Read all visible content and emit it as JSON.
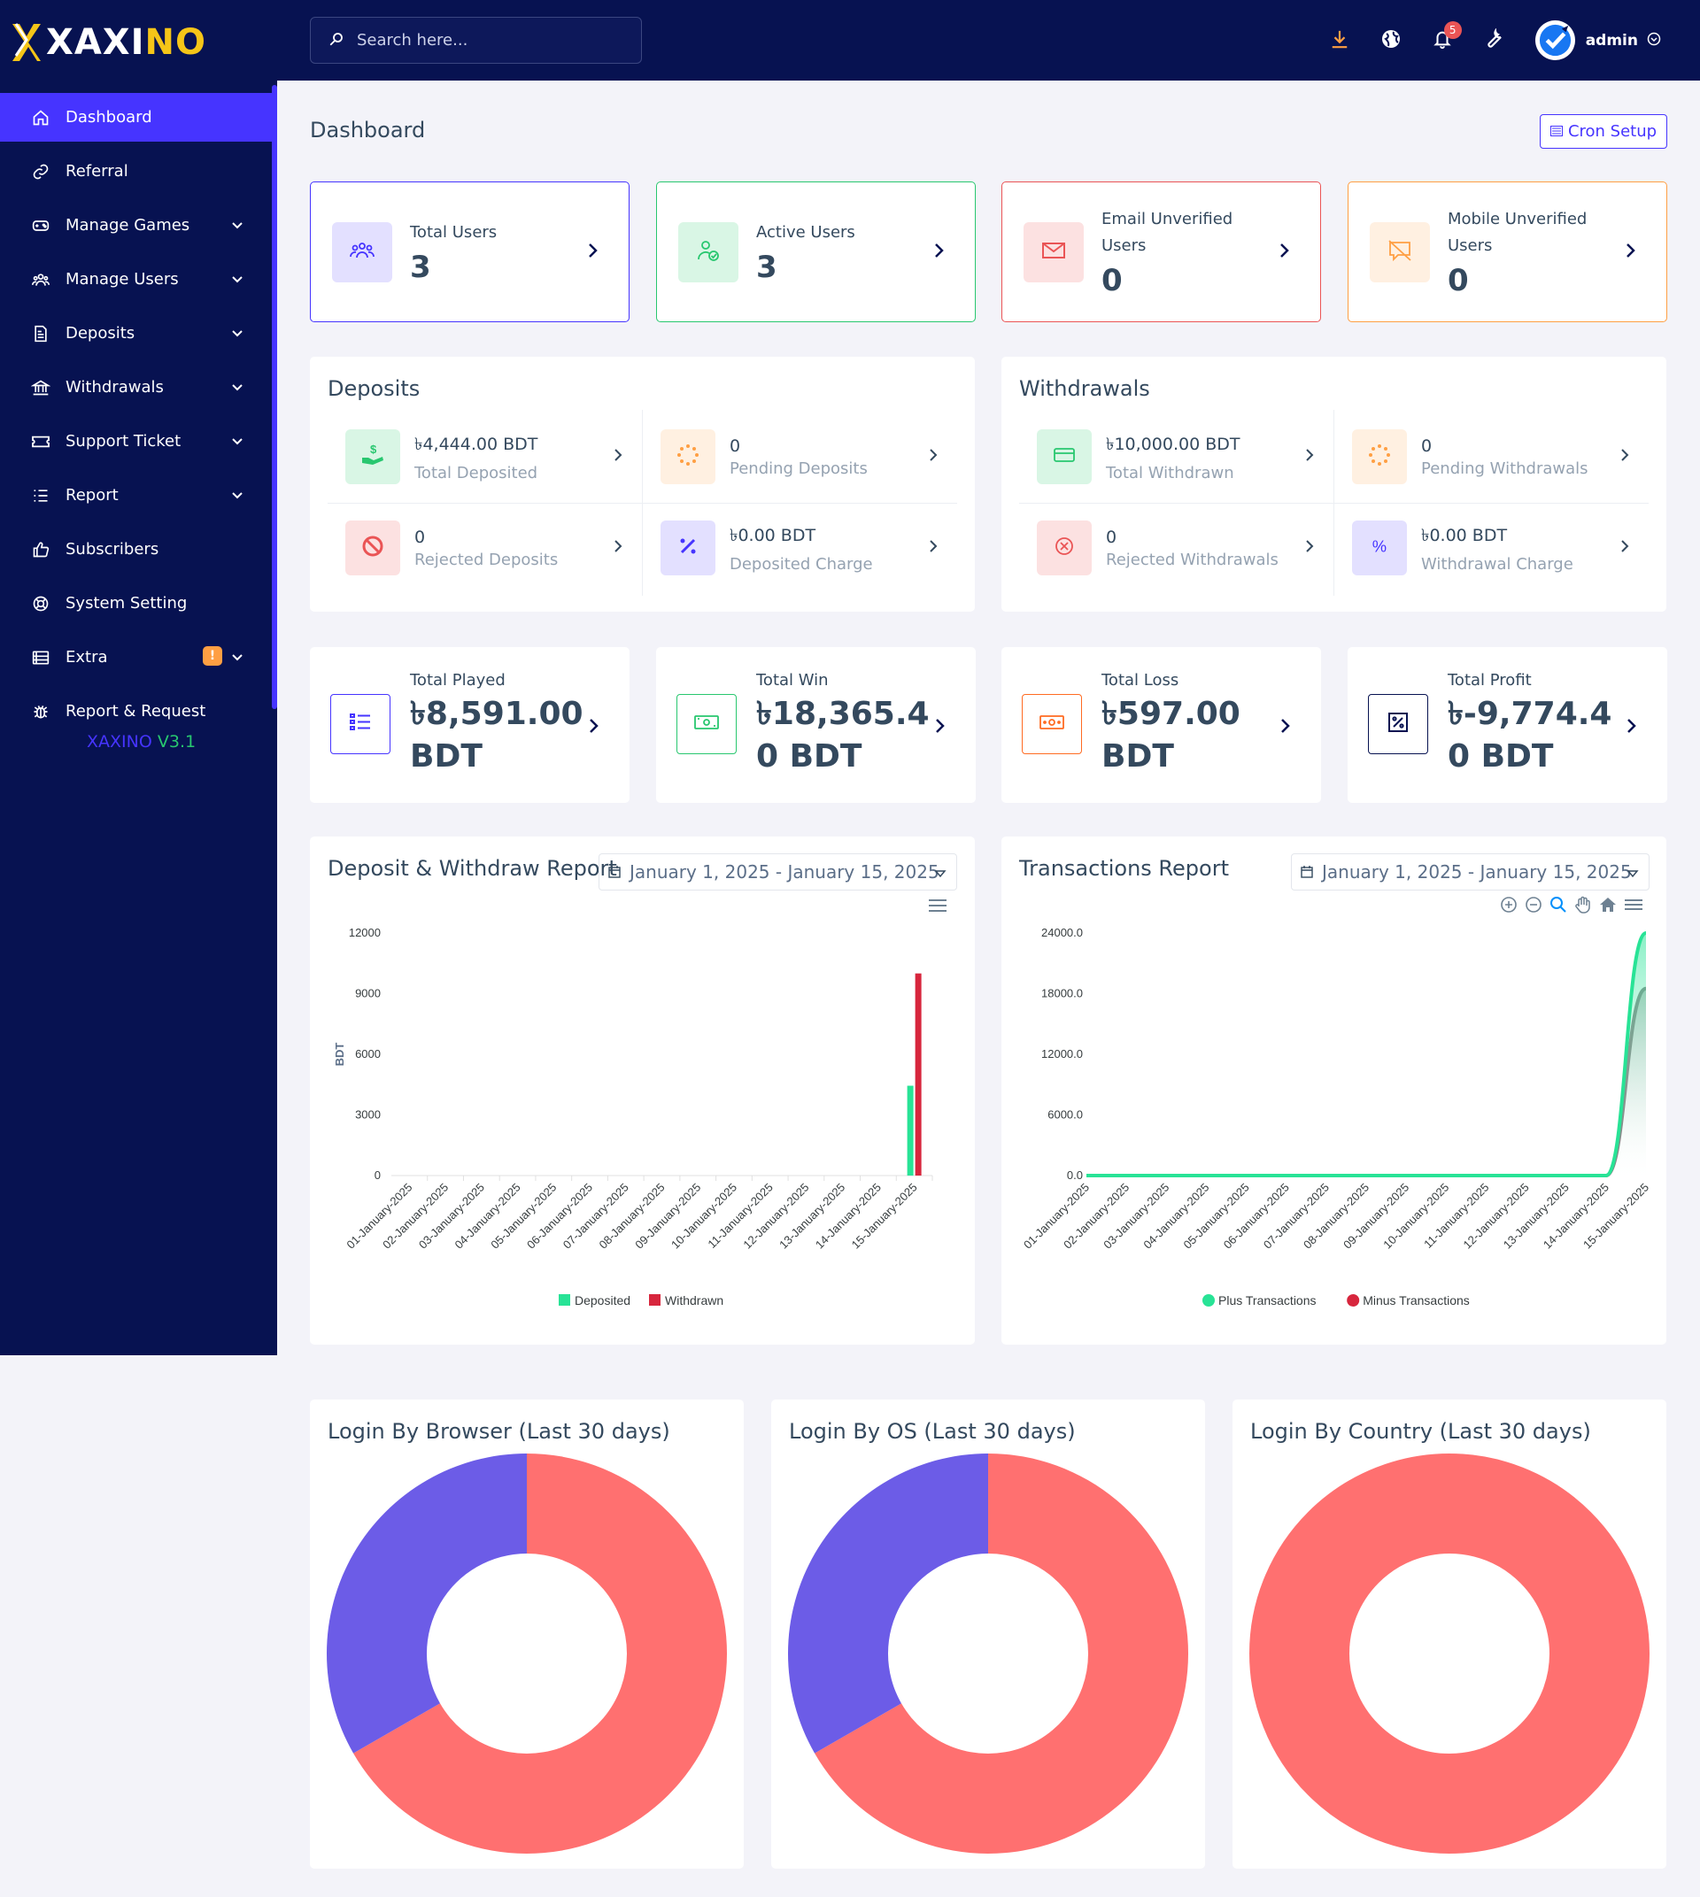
{
  "brand": {
    "logo_text_main": "XAXI",
    "logo_text_accent": "NO",
    "version_name": "XAXINO",
    "version_number": "V3.1"
  },
  "search": {
    "placeholder": "Search here..."
  },
  "topbar": {
    "notification_count": "5",
    "user_name": "admin"
  },
  "sidebar": {
    "items": [
      {
        "label": "Dashboard",
        "icon": "home-icon",
        "active": true,
        "has_submenu": false
      },
      {
        "label": "Referral",
        "icon": "link-icon",
        "has_submenu": false
      },
      {
        "label": "Manage Games",
        "icon": "gamepad-icon",
        "has_submenu": true
      },
      {
        "label": "Manage Users",
        "icon": "users-icon",
        "has_submenu": true
      },
      {
        "label": "Deposits",
        "icon": "file-invoice-icon",
        "has_submenu": true
      },
      {
        "label": "Withdrawals",
        "icon": "bank-icon",
        "has_submenu": true
      },
      {
        "label": "Support Ticket",
        "icon": "ticket-icon",
        "has_submenu": true
      },
      {
        "label": "Report",
        "icon": "list-icon",
        "has_submenu": true
      },
      {
        "label": "Subscribers",
        "icon": "thumbs-up-icon",
        "has_submenu": false
      },
      {
        "label": "System Setting",
        "icon": "life-ring-icon",
        "has_submenu": false
      },
      {
        "label": "Extra",
        "icon": "server-icon",
        "has_submenu": true,
        "warning_badge": "!"
      },
      {
        "label": "Report & Request",
        "icon": "bug-icon",
        "has_submenu": false
      }
    ]
  },
  "page": {
    "title": "Dashboard",
    "cron_button": "Cron Setup"
  },
  "stats": [
    {
      "label": "Total Users",
      "value": "3",
      "color": "#4634ff"
    },
    {
      "label": "Active Users",
      "value": "3",
      "color": "#28c76f"
    },
    {
      "label": "Email Unverified Users",
      "value": "0",
      "color": "#ea5455"
    },
    {
      "label": "Mobile Unverified Users",
      "value": "0",
      "color": "#ff9f43"
    }
  ],
  "deposits": {
    "title": "Deposits",
    "widgets": [
      {
        "value": "৳4,444.00 BDT",
        "label": "Total Deposited"
      },
      {
        "value": "0",
        "label": "Pending Deposits"
      },
      {
        "value": "0",
        "label": "Rejected Deposits"
      },
      {
        "value": "৳0.00 BDT",
        "label": "Deposited Charge"
      }
    ]
  },
  "withdrawals": {
    "title": "Withdrawals",
    "widgets": [
      {
        "value": "৳10,000.00 BDT",
        "label": "Total Withdrawn"
      },
      {
        "value": "0",
        "label": "Pending Withdrawals"
      },
      {
        "value": "0",
        "label": "Rejected Withdrawals"
      },
      {
        "value": "৳0.00 BDT",
        "label": "Withdrawal Charge"
      }
    ]
  },
  "games": [
    {
      "label": "Total Played",
      "value": "৳8,591.00 BDT",
      "color": "#4634ff"
    },
    {
      "label": "Total Win",
      "value": "৳18,365.4 0 BDT",
      "color": "#28c76f"
    },
    {
      "label": "Total Loss",
      "value": "৳597.00 BDT",
      "color": "#ff6b22"
    },
    {
      "label": "Total Profit",
      "value": "৳-9,774.4 0 BDT",
      "color": "#071251"
    }
  ],
  "charts": {
    "deposit_report": {
      "title": "Deposit & Withdraw Report",
      "date_range": "January 1, 2025 - January 15, 2025"
    },
    "transactions_report": {
      "title": "Transactions Report",
      "date_range": "January 1, 2025 - January 15, 2025"
    },
    "login_browser": {
      "title": "Login By Browser (Last 30 days)"
    },
    "login_os": {
      "title": "Login By OS (Last 30 days)"
    },
    "login_country": {
      "title": "Login By Country (Last 30 days)"
    }
  },
  "chart_data": [
    {
      "type": "bar",
      "title": "Deposit & Withdraw Report",
      "ylabel": "BDT",
      "ylim": [
        0,
        12000
      ],
      "yticks": [
        0,
        3000,
        6000,
        9000,
        12000
      ],
      "categories": [
        "01-January-2025",
        "02-January-2025",
        "03-January-2025",
        "04-January-2025",
        "05-January-2025",
        "06-January-2025",
        "07-January-2025",
        "08-January-2025",
        "09-January-2025",
        "10-January-2025",
        "11-January-2025",
        "12-January-2025",
        "13-January-2025",
        "14-January-2025",
        "15-January-2025"
      ],
      "series": [
        {
          "name": "Deposited",
          "color": "#28e396",
          "values": [
            0,
            0,
            0,
            0,
            0,
            0,
            0,
            0,
            0,
            0,
            0,
            0,
            0,
            0,
            4444
          ]
        },
        {
          "name": "Withdrawn",
          "color": "#d7263d",
          "values": [
            0,
            0,
            0,
            0,
            0,
            0,
            0,
            0,
            0,
            0,
            0,
            0,
            0,
            0,
            10000
          ]
        }
      ],
      "legend": "bottom"
    },
    {
      "type": "area",
      "title": "Transactions Report",
      "ylim": [
        0,
        24000
      ],
      "yticks": [
        "0.0",
        "6000.0",
        "12000.0",
        "18000.0",
        "24000.0"
      ],
      "categories": [
        "01-January-2025",
        "02-January-2025",
        "03-January-2025",
        "04-January-2025",
        "05-January-2025",
        "06-January-2025",
        "07-January-2025",
        "08-January-2025",
        "09-January-2025",
        "10-January-2025",
        "11-January-2025",
        "12-January-2025",
        "13-January-2025",
        "14-January-2025",
        "15-January-2025"
      ],
      "series": [
        {
          "name": "Plus Transactions",
          "color": "#28e396",
          "values": [
            0,
            0,
            0,
            0,
            0,
            0,
            0,
            0,
            0,
            0,
            0,
            0,
            0,
            0,
            24000
          ]
        },
        {
          "name": "Minus Transactions",
          "color": "#d7263d",
          "values": [
            0,
            0,
            0,
            0,
            0,
            0,
            0,
            0,
            0,
            0,
            0,
            0,
            0,
            0,
            18500
          ]
        }
      ],
      "legend": "bottom"
    },
    {
      "type": "pie",
      "title": "Login By Browser (Last 30 days)",
      "slices": [
        {
          "value": 0.667,
          "color": "#ff7070"
        },
        {
          "value": 0.333,
          "color": "#6c5ce7"
        }
      ]
    },
    {
      "type": "pie",
      "title": "Login By OS (Last 30 days)",
      "slices": [
        {
          "value": 0.667,
          "color": "#ff7070"
        },
        {
          "value": 0.333,
          "color": "#6c5ce7"
        }
      ]
    },
    {
      "type": "pie",
      "title": "Login By Country (Last 30 days)",
      "slices": [
        {
          "value": 1.0,
          "color": "#ff7070"
        }
      ]
    }
  ]
}
